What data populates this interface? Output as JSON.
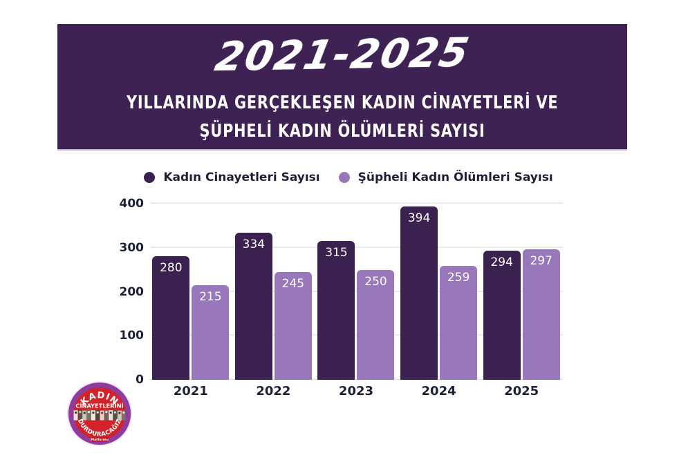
{
  "header": {
    "title": "2021-2025",
    "subtitle_line1": "YILLARINDA GERÇEKLEŞEN KADIN CİNAYETLERİ VE",
    "subtitle_line2": "ŞÜPHELİ KADIN ÖLÜMLERİ SAYISI",
    "background": "#3E2253",
    "text_color": "#FFFFFF"
  },
  "legend": [
    {
      "label": "Kadın Cinayetleri Sayısı",
      "color": "#3B2150"
    },
    {
      "label": "Şüpheli Kadın Ölümleri Sayısı",
      "color": "#9878BA"
    }
  ],
  "chart_data": {
    "type": "bar",
    "categories": [
      "2021",
      "2022",
      "2023",
      "2024",
      "2025"
    ],
    "series": [
      {
        "name": "Kadın Cinayetleri Sayısı",
        "color": "#3B2150",
        "values": [
          280,
          334,
          315,
          394,
          294
        ]
      },
      {
        "name": "Şüpheli Kadın Ölümleri Sayısı",
        "color": "#9878BA",
        "values": [
          215,
          245,
          250,
          259,
          297
        ]
      }
    ],
    "ylim": [
      0,
      400
    ],
    "yticks": [
      0,
      100,
      200,
      300,
      400
    ],
    "grid": true,
    "legend_position": "top",
    "value_labels": "inside-top",
    "value_label_color": "#FFFFFF"
  },
  "logo": {
    "line1": "KADIN",
    "line2": "CİNAYETLERİNİ",
    "line3": "DURDURACAĞIZ",
    "line4": "Platformu",
    "ring_color": "#8E3D9E",
    "inner_color": "#D2232A"
  },
  "colors": {
    "page_background": "#FFFFFF",
    "gridline": "#EBEBEB",
    "axis_text": "#1E2035"
  }
}
